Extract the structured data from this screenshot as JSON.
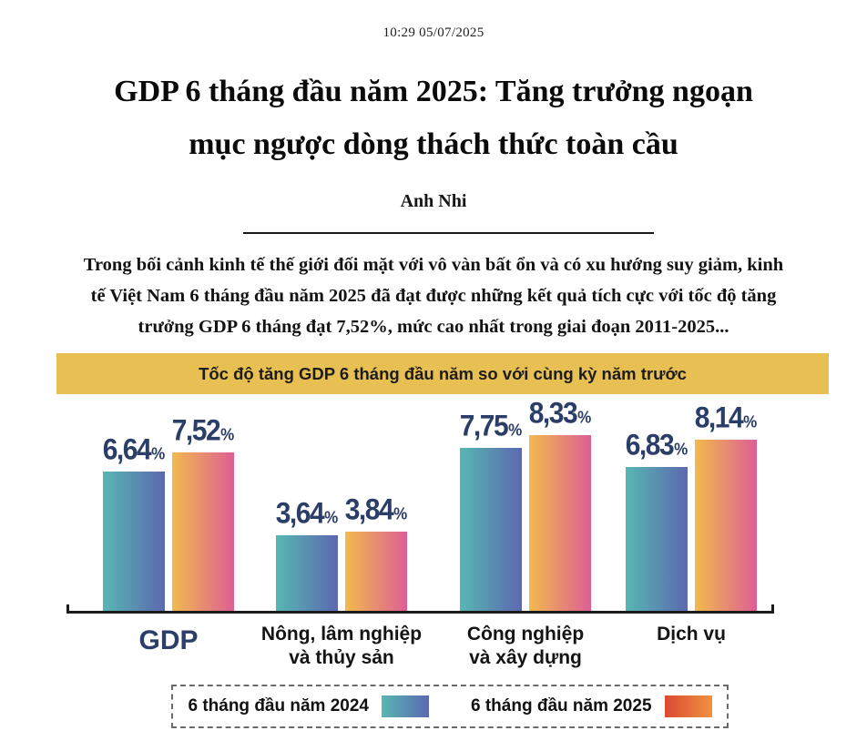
{
  "header": {
    "timestamp": "10:29 05/07/2025",
    "title_lines": [
      "GDP 6 tháng đầu năm 2025: Tăng trưởng ngoạn",
      "mục ngược dòng thách thức toàn cầu"
    ],
    "author": "Anh Nhi",
    "lead_lines": [
      "Trong bối cảnh kinh tế thế giới đối mặt với vô vàn bất ổn và có xu hướng suy giảm, kinh",
      "tế Việt Nam 6 tháng đầu năm 2025 đã đạt được những kết quả tích cực với tốc độ tăng",
      "trưởng GDP 6 tháng đạt 7,52%, mức cao nhất trong giai đoạn 2011-2025..."
    ]
  },
  "chart_data": {
    "type": "bar",
    "title": "Tốc độ tăng GDP 6 tháng đầu năm so với cùng kỳ năm trước",
    "categories": [
      "GDP",
      "Nông, lâm nghiệp\nvà thủy sản",
      "Công nghiệp\nvà xây dựng",
      "Dịch vụ"
    ],
    "series": [
      {
        "name": "6 tháng đầu năm 2024",
        "values": [
          6.64,
          3.64,
          7.75,
          6.83
        ],
        "labels": [
          "6,64",
          "3,64",
          "7,75",
          "6,83"
        ]
      },
      {
        "name": "6 tháng đầu năm 2025",
        "values": [
          7.52,
          3.84,
          8.33,
          8.14
        ],
        "labels": [
          "7,52",
          "3,84",
          "8,33",
          "8,14"
        ]
      }
    ],
    "unit": "%",
    "ylim": [
      0,
      9
    ],
    "grid": false,
    "legend_position": "bottom",
    "colors": {
      "banner_bg": "#e7bf52",
      "banner_text": "#1c1c1c",
      "value_label": "#2b3e68",
      "category_gdp": "#2b3e68",
      "category_other": "#141414",
      "bar_2024_gradient": [
        "#57b7b2",
        "#5c68b0"
      ],
      "bar_2025_gradient": [
        "#f2ba4d",
        "#dd5e95"
      ],
      "legend_2025_gradient": [
        "#dc4a33",
        "#ef9140"
      ],
      "axis": "#1b1b1b"
    }
  }
}
